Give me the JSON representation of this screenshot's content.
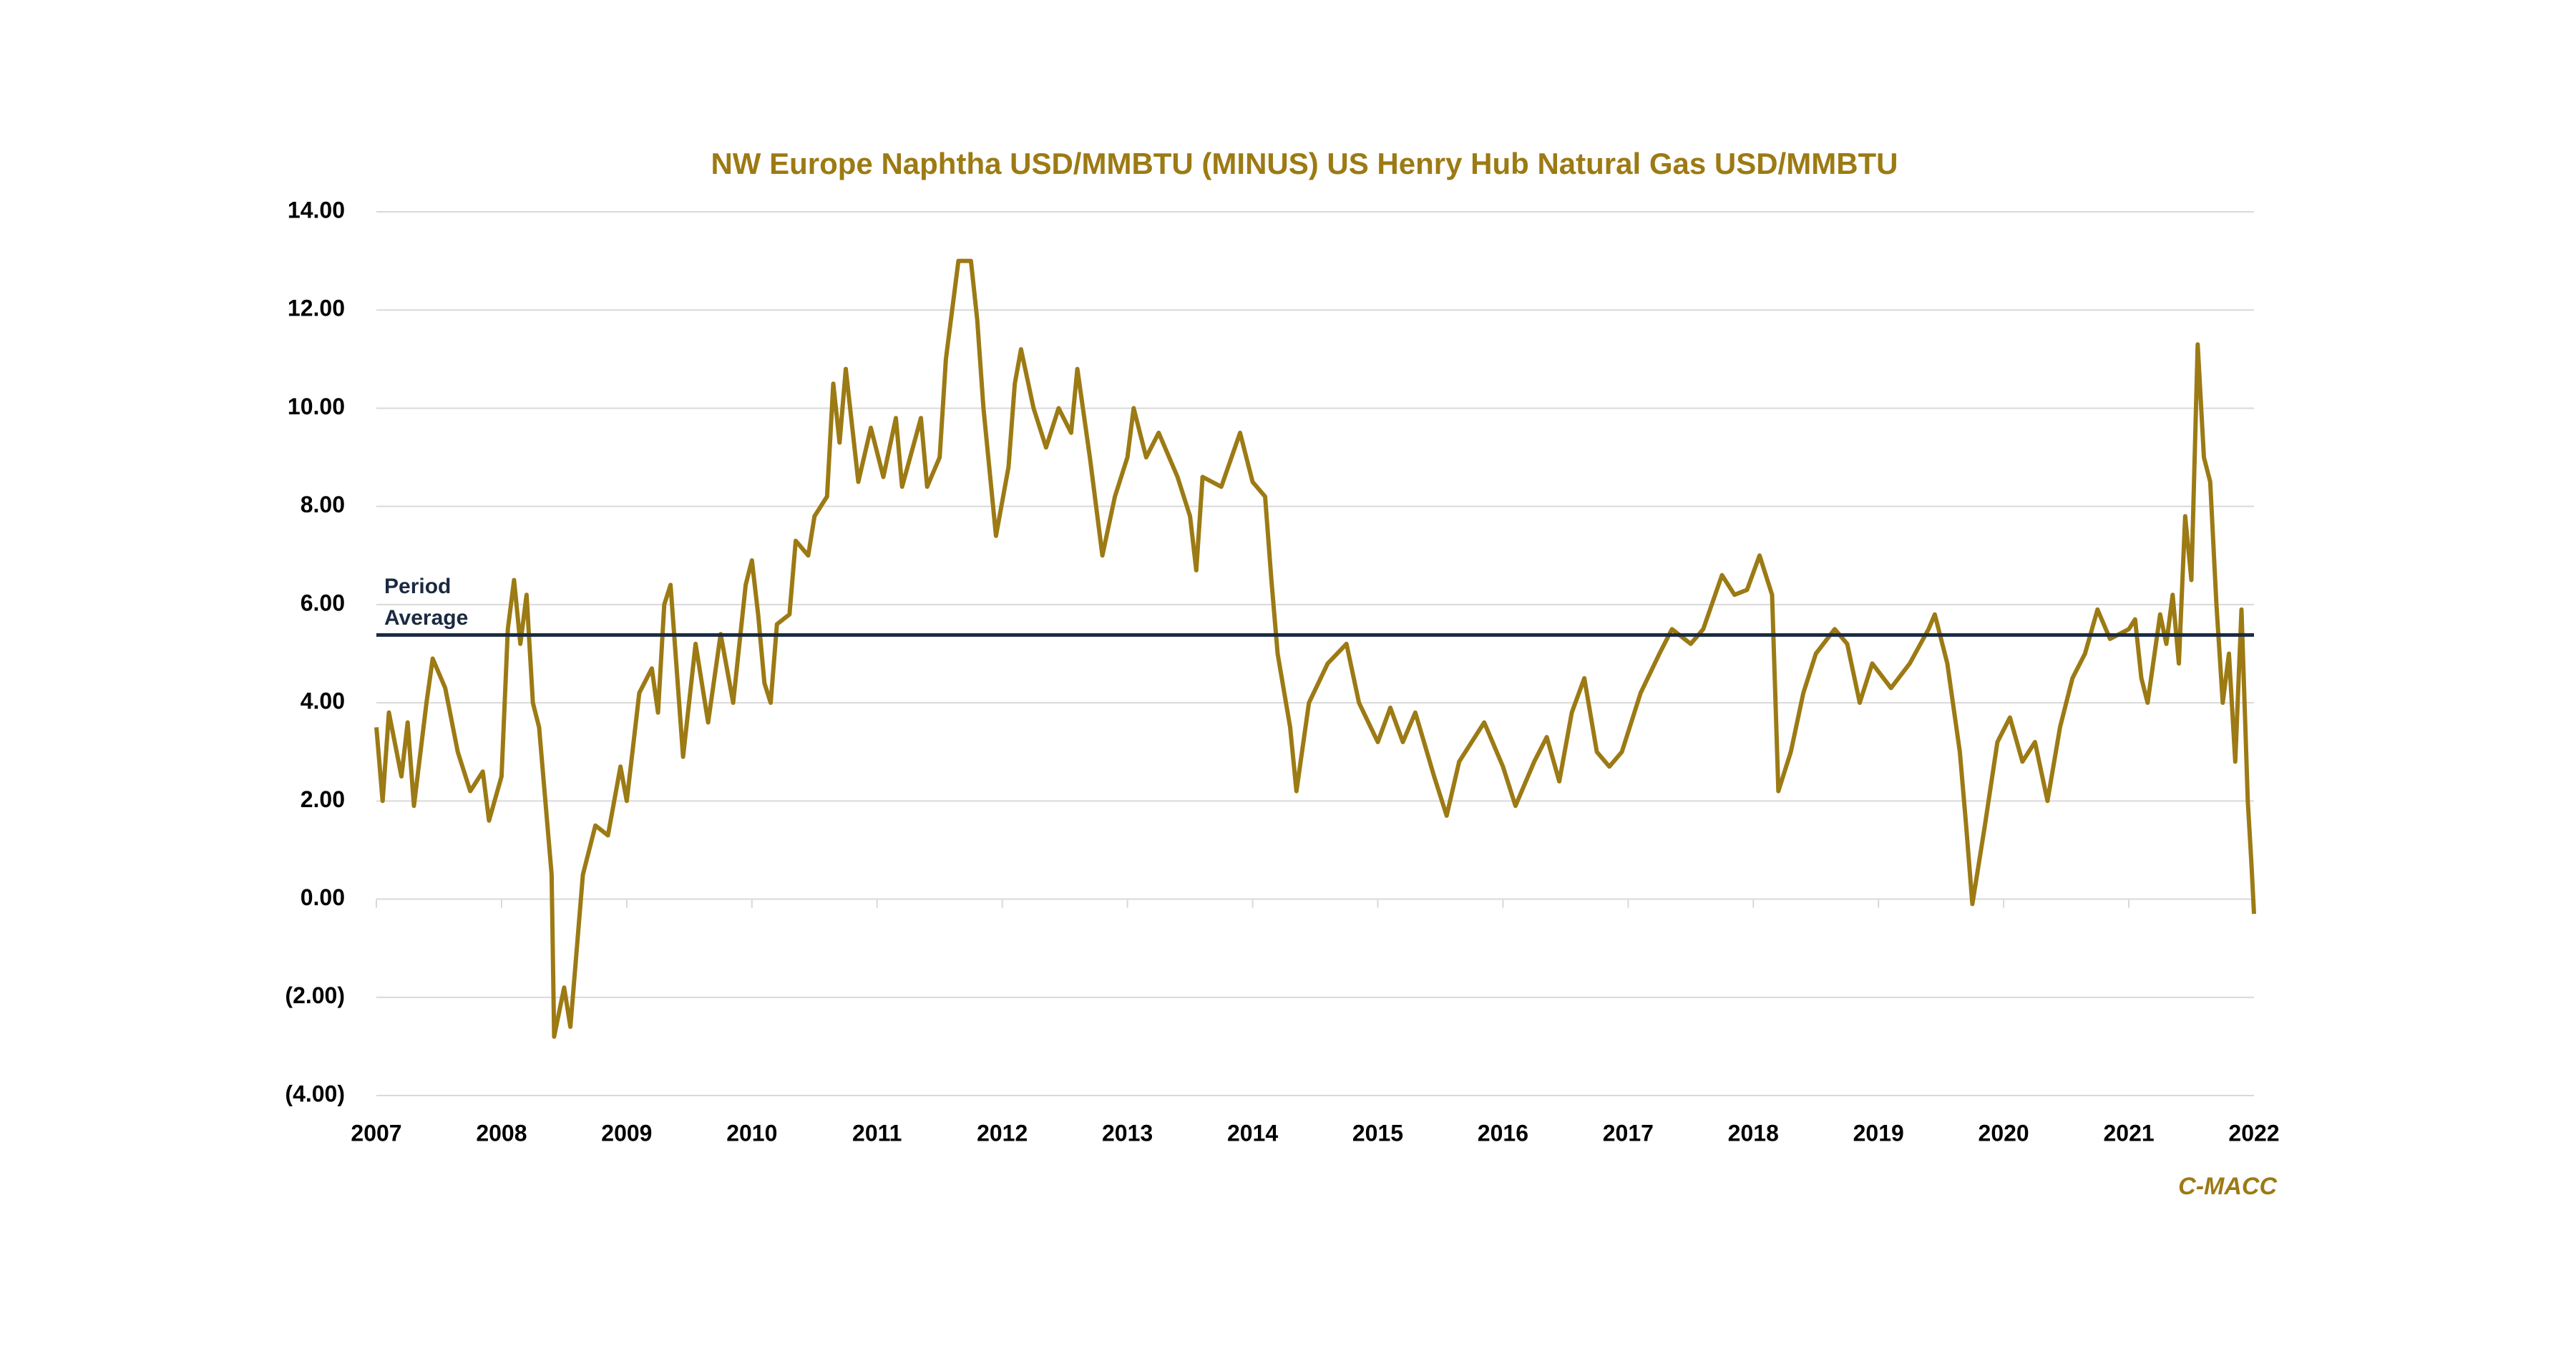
{
  "chart_data": {
    "type": "line",
    "title": "NW Europe Naphtha USD/MMBTU (MINUS) US Henry Hub Natural Gas USD/MMBTU",
    "source": "C-MACC",
    "x": [
      2007.0,
      2007.05,
      2007.1,
      2007.2,
      2007.25,
      2007.3,
      2007.4,
      2007.45,
      2007.55,
      2007.65,
      2007.75,
      2007.85,
      2007.9,
      2008.0,
      2008.05,
      2008.1,
      2008.15,
      2008.2,
      2008.25,
      2008.3,
      2008.4,
      2008.42,
      2008.5,
      2008.55,
      2008.65,
      2008.75,
      2008.85,
      2008.95,
      2009.0,
      2009.1,
      2009.2,
      2009.25,
      2009.3,
      2009.35,
      2009.45,
      2009.55,
      2009.65,
      2009.75,
      2009.85,
      2009.95,
      2010.0,
      2010.05,
      2010.1,
      2010.15,
      2010.2,
      2010.3,
      2010.35,
      2010.45,
      2010.5,
      2010.6,
      2010.65,
      2010.7,
      2010.75,
      2010.85,
      2010.95,
      2011.05,
      2011.15,
      2011.2,
      2011.35,
      2011.4,
      2011.5,
      2011.55,
      2011.65,
      2011.75,
      2011.8,
      2011.85,
      2011.95,
      2012.05,
      2012.1,
      2012.15,
      2012.25,
      2012.35,
      2012.45,
      2012.55,
      2012.6,
      2012.7,
      2012.8,
      2012.9,
      2013.0,
      2013.05,
      2013.15,
      2013.25,
      2013.4,
      2013.5,
      2013.55,
      2013.6,
      2013.75,
      2013.9,
      2014.0,
      2014.1,
      2014.15,
      2014.2,
      2014.3,
      2014.35,
      2014.45,
      2014.6,
      2014.75,
      2014.85,
      2015.0,
      2015.1,
      2015.2,
      2015.3,
      2015.45,
      2015.55,
      2015.65,
      2015.85,
      2016.0,
      2016.1,
      2016.25,
      2016.35,
      2016.45,
      2016.55,
      2016.65,
      2016.75,
      2016.85,
      2016.95,
      2017.1,
      2017.25,
      2017.35,
      2017.5,
      2017.6,
      2017.75,
      2017.85,
      2017.95,
      2018.05,
      2018.15,
      2018.2,
      2018.3,
      2018.4,
      2018.5,
      2018.65,
      2018.75,
      2018.85,
      2018.95,
      2019.1,
      2019.25,
      2019.4,
      2019.45,
      2019.55,
      2019.65,
      2019.7,
      2019.75,
      2019.85,
      2019.95,
      2020.05,
      2020.15,
      2020.25,
      2020.35,
      2020.45,
      2020.55,
      2020.65,
      2020.75,
      2020.85,
      2021.0,
      2021.05,
      2021.1,
      2021.15,
      2021.25,
      2021.3,
      2021.35,
      2021.4,
      2021.45,
      2021.5,
      2021.55,
      2021.6,
      2021.65,
      2021.7,
      2021.75,
      2021.8,
      2021.85,
      2021.9,
      2021.95,
      2021.98,
      2022.0
    ],
    "series": [
      {
        "color": "#9c7a14",
        "values": [
          3.5,
          2.0,
          3.8,
          2.5,
          3.6,
          1.9,
          4.0,
          4.9,
          4.3,
          3.0,
          2.2,
          2.6,
          1.6,
          2.5,
          5.5,
          6.5,
          5.2,
          6.2,
          4.0,
          3.5,
          0.5,
          -2.8,
          -1.8,
          -2.6,
          0.5,
          1.5,
          1.3,
          2.7,
          2.0,
          4.2,
          4.7,
          3.8,
          6.0,
          6.4,
          2.9,
          5.2,
          3.6,
          5.4,
          4.0,
          6.4,
          6.9,
          5.8,
          4.4,
          4.0,
          5.6,
          5.8,
          7.3,
          7.0,
          7.8,
          8.2,
          10.5,
          9.3,
          10.8,
          8.5,
          9.6,
          8.6,
          9.8,
          8.4,
          9.8,
          8.4,
          9.0,
          11.0,
          13.0,
          13.0,
          11.8,
          10.0,
          7.4,
          8.8,
          10.5,
          11.2,
          10.0,
          9.2,
          10.0,
          9.5,
          10.8,
          9.0,
          7.0,
          8.2,
          9.0,
          10.0,
          9.0,
          9.5,
          8.6,
          7.8,
          6.7,
          8.6,
          8.4,
          9.5,
          8.5,
          8.2,
          6.5,
          5.0,
          3.5,
          2.2,
          4.0,
          4.8,
          5.2,
          4.0,
          3.2,
          3.9,
          3.2,
          3.8,
          2.5,
          1.7,
          2.8,
          3.6,
          2.7,
          1.9,
          2.8,
          3.3,
          2.4,
          3.8,
          4.5,
          3.0,
          2.7,
          3.0,
          4.2,
          5.0,
          5.5,
          5.2,
          5.5,
          6.6,
          6.2,
          6.3,
          7.0,
          6.2,
          2.2,
          3.0,
          4.2,
          5.0,
          5.5,
          5.2,
          4.0,
          4.8,
          4.3,
          4.8,
          5.5,
          5.8,
          4.8,
          3.0,
          1.5,
          -0.1,
          1.5,
          3.2,
          3.7,
          2.8,
          3.2,
          2.0,
          3.5,
          4.5,
          5.0,
          5.9,
          5.3,
          5.5,
          5.7,
          4.5,
          4.0,
          5.8,
          5.2,
          6.2,
          4.8,
          7.8,
          6.5,
          11.3,
          9.0,
          8.5,
          6.0,
          4.0,
          5.0,
          2.8,
          5.9,
          2.0,
          0.7,
          -0.3
        ]
      }
    ],
    "average": {
      "label": "Period Average",
      "value": 5.38,
      "color": "#1b2a41"
    },
    "xlim": [
      2007,
      2022
    ],
    "xticks": [
      2007,
      2008,
      2009,
      2010,
      2011,
      2012,
      2013,
      2014,
      2015,
      2016,
      2017,
      2018,
      2019,
      2020,
      2021,
      2022
    ],
    "ylim": [
      -4,
      14
    ],
    "yticks": [
      {
        "value": -4,
        "label": "(4.00)"
      },
      {
        "value": -2,
        "label": "(2.00)"
      },
      {
        "value": 0,
        "label": "0.00"
      },
      {
        "value": 2,
        "label": "2.00"
      },
      {
        "value": 4,
        "label": "4.00"
      },
      {
        "value": 6,
        "label": "6.00"
      },
      {
        "value": 8,
        "label": "8.00"
      },
      {
        "value": 10,
        "label": "10.00"
      },
      {
        "value": 12,
        "label": "12.00"
      },
      {
        "value": 14,
        "label": "14.00"
      }
    ],
    "grid": true
  }
}
